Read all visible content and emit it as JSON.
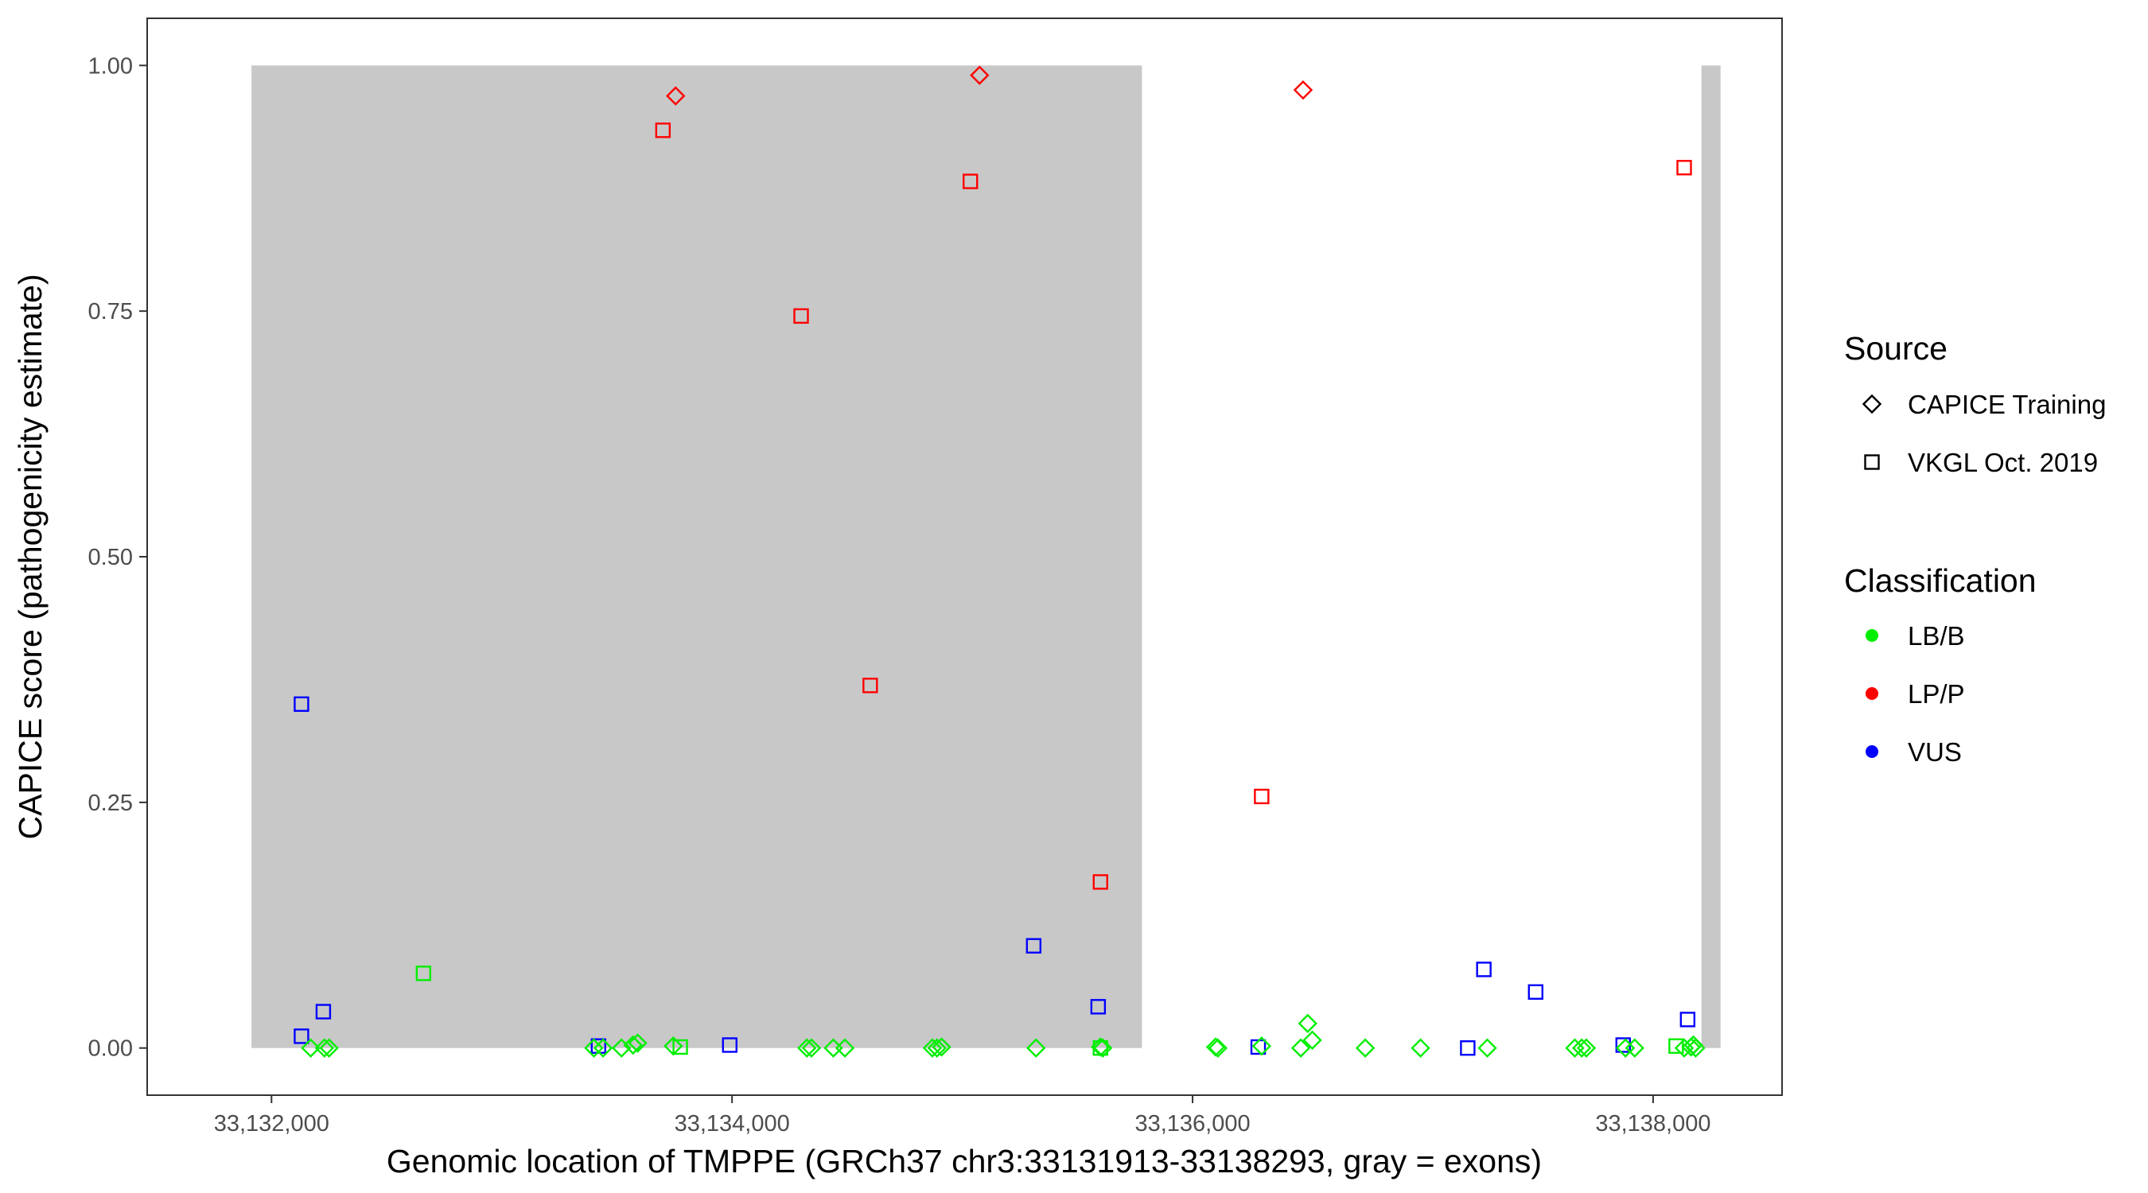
{
  "chart_data": {
    "type": "scatter",
    "xlabel": "Genomic location of TMPPE (GRCh37 chr3:33131913-33138293, gray = exons)",
    "ylabel": "CAPICE score (pathogenicity estimate)",
    "xlim": [
      33131460,
      33138560
    ],
    "ylim": [
      -0.048,
      1.048
    ],
    "x_ticks": [
      33132000,
      33134000,
      33136000,
      33138000
    ],
    "x_tick_labels": [
      "33,132,000",
      "33,134,000",
      "33,136,000",
      "33,138,000"
    ],
    "y_ticks": [
      0,
      0.25,
      0.5,
      0.75,
      1
    ],
    "y_tick_labels": [
      "0.00",
      "0.25",
      "0.50",
      "0.75",
      "1.00"
    ],
    "exon_regions": [
      {
        "start": 33131913,
        "end": 33135780
      },
      {
        "start": 33138210,
        "end": 33138293
      }
    ],
    "exon_color": "#c8c8c8",
    "grid": false,
    "colors": {
      "LB/B": "#00ee00",
      "LP/P": "#ff0000",
      "VUS": "#0000ff"
    },
    "legend": {
      "position": "right",
      "source_title": "Source",
      "source_items": [
        {
          "label": "CAPICE Training",
          "shape": "diamond"
        },
        {
          "label": "VKGL Oct. 2019",
          "shape": "square"
        }
      ],
      "class_title": "Classification",
      "class_items": [
        {
          "label": "LB/B",
          "color": "#00ee00"
        },
        {
          "label": "LP/P",
          "color": "#ff0000"
        },
        {
          "label": "VUS",
          "color": "#0000ff"
        }
      ]
    },
    "series": [
      {
        "source": "CAPICE Training",
        "classification": "LP/P",
        "points": [
          [
            33133755,
            0.969
          ],
          [
            33135075,
            0.99
          ],
          [
            33136480,
            0.975
          ]
        ]
      },
      {
        "source": "VKGL Oct. 2019",
        "classification": "LP/P",
        "points": [
          [
            33133700,
            0.934
          ],
          [
            33134300,
            0.745
          ],
          [
            33134600,
            0.369
          ],
          [
            33135035,
            0.882
          ],
          [
            33135600,
            0.169
          ],
          [
            33136300,
            0.256
          ],
          [
            33138135,
            0.896
          ]
        ]
      },
      {
        "source": "VKGL Oct. 2019",
        "classification": "VUS",
        "points": [
          [
            33132130,
            0.35
          ],
          [
            33132130,
            0.012
          ],
          [
            33132225,
            0.037
          ],
          [
            33133420,
            0.002
          ],
          [
            33133990,
            0.003
          ],
          [
            33135310,
            0.104
          ],
          [
            33135590,
            0.042
          ],
          [
            33136285,
            0.001
          ],
          [
            33137195,
            0.0
          ],
          [
            33137265,
            0.08
          ],
          [
            33137490,
            0.057
          ],
          [
            33137870,
            0.003
          ],
          [
            33138150,
            0.029
          ]
        ]
      },
      {
        "source": "VKGL Oct. 2019",
        "classification": "LB/B",
        "points": [
          [
            33132660,
            0.076
          ],
          [
            33133775,
            0.001
          ],
          [
            33135600,
            0.0
          ],
          [
            33138100,
            0.002
          ]
        ]
      },
      {
        "source": "CAPICE Training",
        "classification": "LB/B",
        "points": [
          [
            33132170,
            0.0
          ],
          [
            33132230,
            0.0
          ],
          [
            33132250,
            0.0
          ],
          [
            33133400,
            0.0
          ],
          [
            33133440,
            0.0
          ],
          [
            33133520,
            0.0
          ],
          [
            33133570,
            0.003
          ],
          [
            33133590,
            0.005
          ],
          [
            33133745,
            0.002
          ],
          [
            33134325,
            0.0
          ],
          [
            33134345,
            0.0
          ],
          [
            33134440,
            0.0
          ],
          [
            33134490,
            0.0
          ],
          [
            33134870,
            0.0
          ],
          [
            33134890,
            0.0
          ],
          [
            33134910,
            0.001
          ],
          [
            33135320,
            0.0
          ],
          [
            33135600,
            0.001
          ],
          [
            33135610,
            0.0
          ],
          [
            33136100,
            0.001
          ],
          [
            33136110,
            0.0
          ],
          [
            33136300,
            0.002
          ],
          [
            33136470,
            0.0
          ],
          [
            33136500,
            0.025
          ],
          [
            33136520,
            0.008
          ],
          [
            33136750,
            0.0
          ],
          [
            33136990,
            0.0
          ],
          [
            33137280,
            0.0
          ],
          [
            33137660,
            0.0
          ],
          [
            33137690,
            0.0
          ],
          [
            33137710,
            0.0
          ],
          [
            33137880,
            0.0
          ],
          [
            33137920,
            0.0
          ],
          [
            33138135,
            0.0
          ],
          [
            33138165,
            0.001
          ],
          [
            33138175,
            0.003
          ],
          [
            33138185,
            0.0
          ]
        ]
      }
    ]
  }
}
